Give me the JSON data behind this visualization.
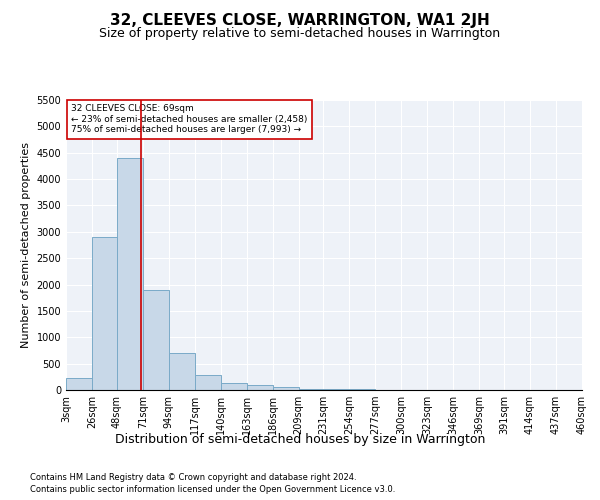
{
  "title": "32, CLEEVES CLOSE, WARRINGTON, WA1 2JH",
  "subtitle": "Size of property relative to semi-detached houses in Warrington",
  "xlabel": "Distribution of semi-detached houses by size in Warrington",
  "ylabel": "Number of semi-detached properties",
  "footnote1": "Contains HM Land Registry data © Crown copyright and database right 2024.",
  "footnote2": "Contains public sector information licensed under the Open Government Licence v3.0.",
  "bar_color": "#c8d8e8",
  "bar_edge_color": "#7aaac8",
  "vline_color": "#cc0000",
  "annotation_box_color": "#ffffff",
  "annotation_box_edge": "#cc0000",
  "annotation_text_line1": "32 CLEEVES CLOSE: 69sqm",
  "annotation_text_line2": "← 23% of semi-detached houses are smaller (2,458)",
  "annotation_text_line3": "75% of semi-detached houses are larger (7,993) →",
  "property_size_sqm": 69,
  "xlabels": [
    "3sqm",
    "26sqm",
    "48sqm",
    "71sqm",
    "94sqm",
    "117sqm",
    "140sqm",
    "163sqm",
    "186sqm",
    "209sqm",
    "231sqm",
    "254sqm",
    "277sqm",
    "300sqm",
    "323sqm",
    "346sqm",
    "369sqm",
    "391sqm",
    "414sqm",
    "437sqm",
    "460sqm"
  ],
  "bar_values": [
    220,
    2900,
    4400,
    1900,
    700,
    290,
    130,
    90,
    60,
    20,
    15,
    10,
    5,
    3,
    2,
    1,
    1,
    0,
    0,
    0
  ],
  "bin_edges": [
    3,
    26,
    48,
    71,
    94,
    117,
    140,
    163,
    186,
    209,
    231,
    254,
    277,
    300,
    323,
    346,
    369,
    391,
    414,
    437,
    460
  ],
  "ylim": [
    0,
    5500
  ],
  "yticks": [
    0,
    500,
    1000,
    1500,
    2000,
    2500,
    3000,
    3500,
    4000,
    4500,
    5000,
    5500
  ],
  "background_color": "#eef2f8",
  "title_fontsize": 11,
  "subtitle_fontsize": 9,
  "axis_fontsize": 8,
  "tick_fontsize": 7
}
